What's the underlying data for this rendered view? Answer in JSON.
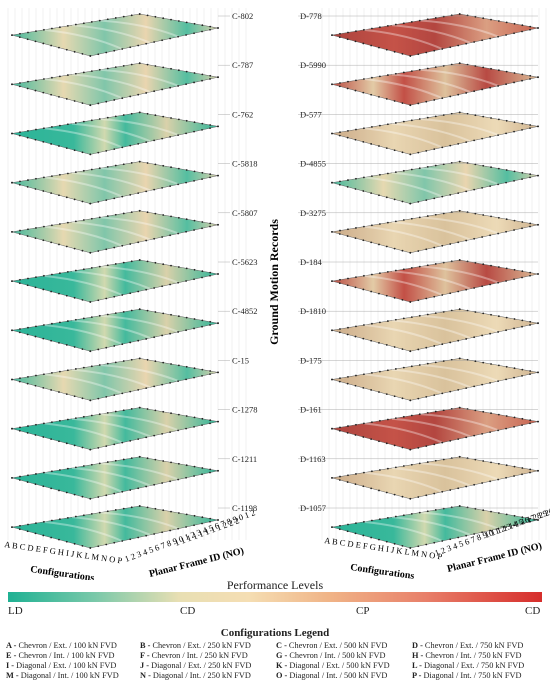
{
  "left_stack": {
    "records": [
      "C-802",
      "C-787",
      "C-762",
      "C-5818",
      "C-5807",
      "C-5623",
      "C-4852",
      "C-15",
      "C-1278",
      "C-1211",
      "C-1198"
    ],
    "configurations_axis_ticks": "A B C D E F G H I J K L M N O P",
    "configurations_label": "Configurations",
    "frame_axis_ticks_top": "1 1 1 1 1 1 1 1 2 2 2",
    "frame_axis_ticks": "1 2 3 4 5 6 7 8 9 0 1 2 3 4 5 6 7 8 9 0 1 2",
    "frame_label": "Planar Frame ID (NO)"
  },
  "right_stack": {
    "records": [
      "D-778",
      "D-5990",
      "D-577",
      "D-4855",
      "D-3275",
      "D-184",
      "D-1810",
      "D-175",
      "D-161",
      "D-1163",
      "D-1057"
    ],
    "configurations_axis_ticks": "A B C D E F G H I J K L M N O P",
    "configurations_label": "Configurations",
    "frame_axis_ticks_top": "1 1 1 1 1 1 1 1 2 2 2",
    "frame_axis_ticks": "1 2 3 4 5 6 7 8 9 0 1 2 3 4 5 6 7 8 9 0 1 2",
    "frame_label": "Planar Frame ID (NO)"
  },
  "vertical_axis_label": "Ground Motion Records",
  "performance": {
    "title": "Performance Levels",
    "levels": [
      "LD",
      "CD",
      "CP",
      "CD"
    ],
    "colors": [
      "#1fb193",
      "#f5deb3",
      "#e8806a",
      "#d62d2b"
    ]
  },
  "legend": {
    "title": "Configurations Legend",
    "items": [
      {
        "key": "A -",
        "text": " Chevron / Ext. / 100 kN FVD"
      },
      {
        "key": "B -",
        "text": " Chevron / Ext. / 250 kN FVD"
      },
      {
        "key": "C -",
        "text": " Chevron / Ext. / 500 kN FVD"
      },
      {
        "key": "D -",
        "text": " Chevron / Ext. / 750 kN FVD"
      },
      {
        "key": "E -",
        "text": " Chevron / Int. / 100 kN FVD"
      },
      {
        "key": "F -",
        "text": " Chevron / Int. / 250 kN FVD"
      },
      {
        "key": "G -",
        "text": " Chevron / Int. / 500 kN FVD"
      },
      {
        "key": "H -",
        "text": " Chevron / Int. / 750 kN FVD"
      },
      {
        "key": "I -",
        "text": " Diagonal / Ext. / 100 kN FVD"
      },
      {
        "key": "J -",
        "text": " Diagonal / Ext. / 250 kN FVD"
      },
      {
        "key": "K -",
        "text": " Diagonal / Ext. / 500 kN FVD"
      },
      {
        "key": "L -",
        "text": " Diagonal / Ext. / 750 kN FVD"
      },
      {
        "key": "M -",
        "text": " Diagonal / Int. / 100 kN FVD"
      },
      {
        "key": "N -",
        "text": " Diagonal / Int. / 250 kN FVD"
      },
      {
        "key": "O -",
        "text": " Diagonal / Int. / 500 kN FVD"
      },
      {
        "key": "P -",
        "text": " Diagonal / Int. / 750 kN FVD"
      }
    ]
  }
}
